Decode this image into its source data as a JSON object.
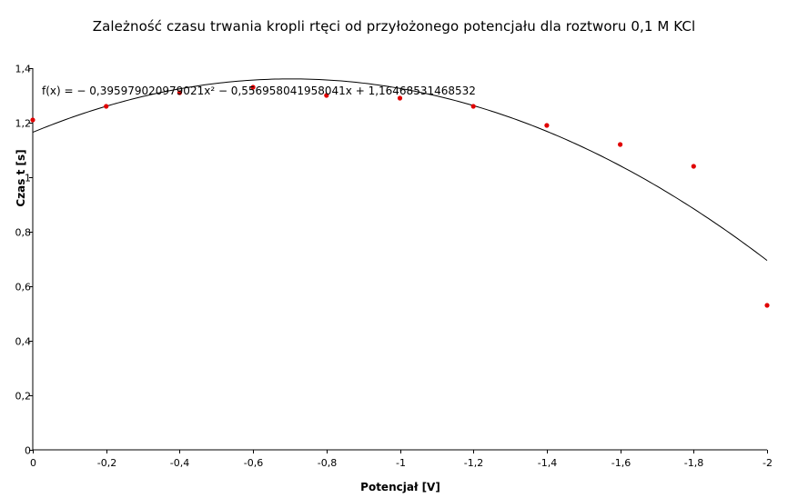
{
  "chart_data": {
    "type": "scatter",
    "title": "Zależność czasu trwania kropli rtęci od przyłożonego potencjału dla roztworu 0,1 M KCl",
    "xlabel": "Potencjał [V]",
    "ylabel": "Czas t [s]",
    "xlim": [
      0,
      -2
    ],
    "ylim": [
      0,
      1.4
    ],
    "x_ticks": [
      0,
      -0.2,
      -0.4,
      -0.6,
      -0.8,
      -1,
      -1.2,
      -1.4,
      -1.6,
      -1.8,
      -2
    ],
    "x_tick_labels": [
      "0",
      "-0,2",
      "-0,4",
      "-0,6",
      "-0,8",
      "-1",
      "-1,2",
      "-1,4",
      "-1,6",
      "-1,8",
      "-2"
    ],
    "y_ticks": [
      0,
      0.2,
      0.4,
      0.6,
      0.8,
      1,
      1.2,
      1.4
    ],
    "y_tick_labels": [
      "0",
      "0,2",
      "0,4",
      "0,6",
      "0,8",
      "1",
      "1,2",
      "1,4"
    ],
    "grid": false,
    "series": [
      {
        "x": [
          0,
          -0.2,
          -0.4,
          -0.6,
          -0.8,
          -1,
          -1.2,
          -1.4,
          -1.6,
          -1.8,
          -2
        ],
        "y": [
          1.21,
          1.26,
          1.31,
          1.33,
          1.3,
          1.29,
          1.26,
          1.19,
          1.12,
          1.04,
          0.53
        ],
        "color": "#e00000",
        "style": "markers"
      }
    ],
    "trendline": {
      "type": "polynomial",
      "coefficients": {
        "a": -0.395979020979021,
        "b": -0.556958041958041,
        "c": 1.16468531468532
      },
      "equation_label": "f(x) = − 0,395979020979021x² − 0,556958041958041x + 1,16468531468532",
      "color": "#000000"
    }
  }
}
